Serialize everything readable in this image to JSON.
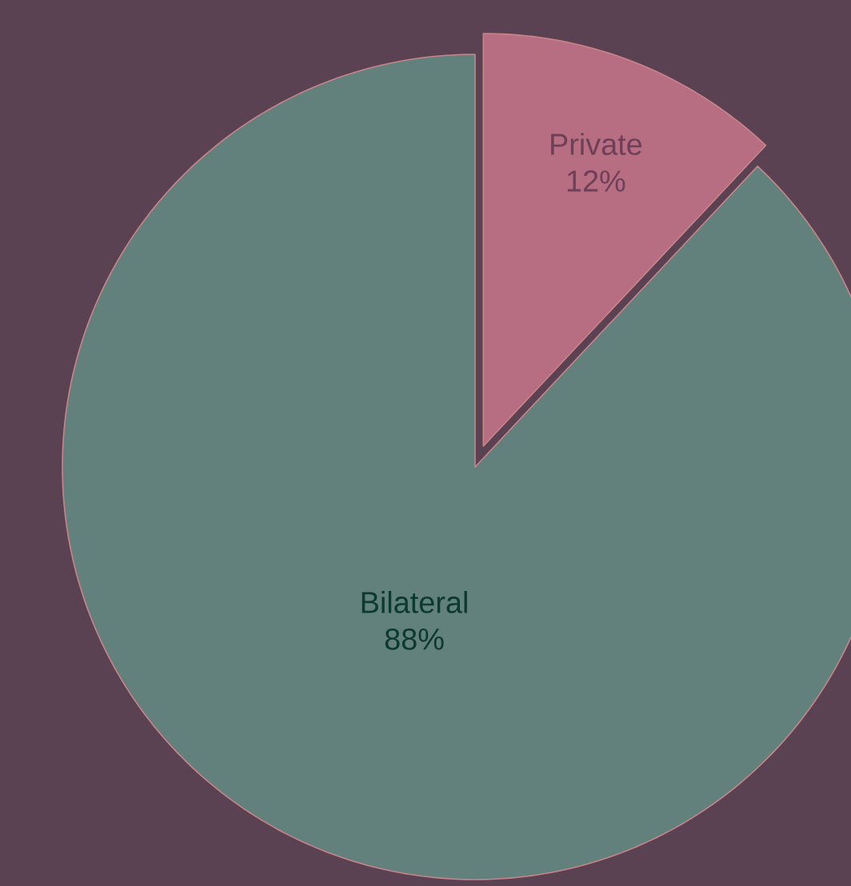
{
  "chart_data": {
    "type": "pie",
    "categories": [
      "Private",
      "Bilateral"
    ],
    "values": [
      12,
      88
    ],
    "value_labels": [
      "12%",
      "88%"
    ],
    "colors": [
      "#b86e82",
      "#62807c"
    ]
  }
}
